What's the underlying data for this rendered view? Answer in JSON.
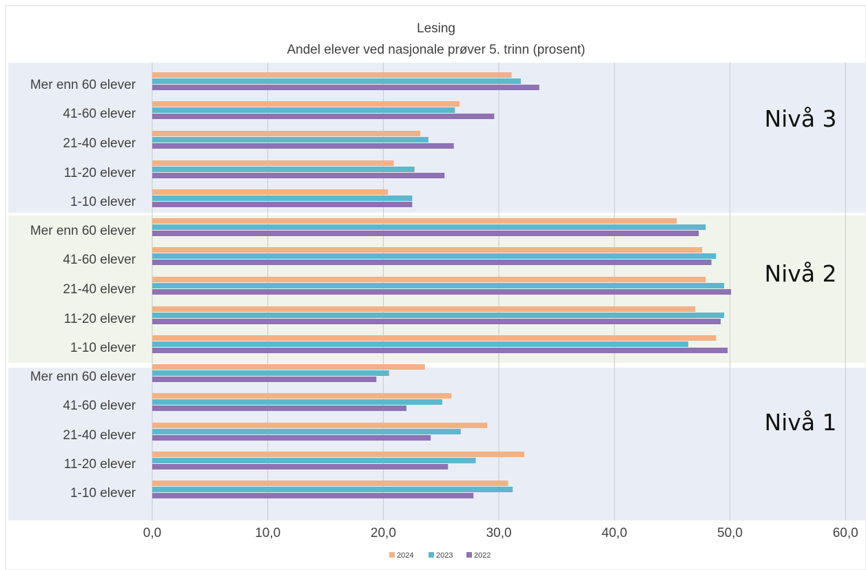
{
  "chart_data": {
    "type": "bar",
    "orientation": "horizontal",
    "title": "Lesing",
    "subtitle": "Andel elever ved nasjonale prøver 5. trinn (prosent)",
    "xlabel": "",
    "ylabel": "",
    "xlim": [
      0,
      60
    ],
    "ticks": [
      "0,0",
      "10,0",
      "20,0",
      "30,0",
      "40,0",
      "50,0",
      "60,0"
    ],
    "tick_values": [
      0,
      10,
      20,
      30,
      40,
      50,
      60
    ],
    "grid": true,
    "legend_position": "bottom",
    "series": [
      {
        "name": "2024",
        "color": "#F4B183"
      },
      {
        "name": "2023",
        "color": "#5BB8CE"
      },
      {
        "name": "2022",
        "color": "#8E72B2"
      }
    ],
    "groups": [
      {
        "label": "Nivå 3",
        "background": "#E9EEF6",
        "categories": [
          "Mer enn 60 elever",
          "41-60 elever",
          "21-40 elever",
          "11-20 elever",
          "1-10 elever"
        ],
        "values": {
          "2024": [
            31.1,
            26.6,
            23.2,
            20.9,
            20.4
          ],
          "2023": [
            31.9,
            26.2,
            23.9,
            22.7,
            22.5
          ],
          "2022": [
            33.5,
            29.6,
            26.1,
            25.3,
            22.5
          ]
        }
      },
      {
        "label": "Nivå 2",
        "background": "#F1F4EA",
        "categories": [
          "Mer enn 60 elever",
          "41-60 elever",
          "21-40 elever",
          "11-20 elever",
          "1-10 elever"
        ],
        "values": {
          "2024": [
            45.4,
            47.6,
            47.9,
            47.0,
            48.8
          ],
          "2023": [
            47.9,
            48.8,
            49.5,
            49.5,
            46.4
          ],
          "2022": [
            47.3,
            48.4,
            50.1,
            49.2,
            49.8
          ]
        }
      },
      {
        "label": "Nivå 1",
        "background": "#E9EEF6",
        "categories": [
          "Mer enn 60 elever",
          "41-60 elever",
          "21-40 elever",
          "11-20 elever",
          "1-10 elever"
        ],
        "values": {
          "2024": [
            23.6,
            25.9,
            29.0,
            32.2,
            30.8
          ],
          "2023": [
            20.5,
            25.1,
            26.7,
            28.0,
            31.2
          ],
          "2022": [
            19.4,
            22.0,
            24.1,
            25.6,
            27.8
          ]
        }
      }
    ]
  }
}
